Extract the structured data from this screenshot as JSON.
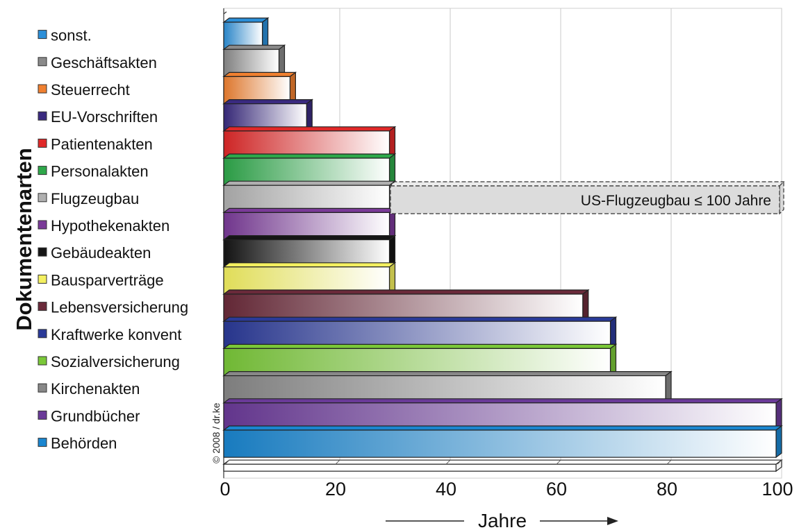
{
  "chart_data": {
    "type": "bar",
    "orientation": "horizontal",
    "ylabel": "Dokumentenarten",
    "xlabel": "Jahre",
    "xlim": [
      0,
      100
    ],
    "xticks": [
      "0",
      "20",
      "40",
      "60",
      "80",
      "100"
    ],
    "grid": true,
    "legend_placement": "left",
    "annotation": "US-Flugzeugbau ≤ 100 Jahre",
    "copyright": "© 2008 / dr.ke",
    "categories": [
      {
        "label": "sonst.",
        "value": 7,
        "color": "#2b8fd8"
      },
      {
        "label": "Geschäftsakten",
        "value": 10,
        "color": "#8a8a8a"
      },
      {
        "label": "Steuerrecht",
        "value": 12,
        "color": "#f08030"
      },
      {
        "label": "EU-Vorschriften",
        "value": 15,
        "color": "#3a2a80"
      },
      {
        "label": "Patientenakten",
        "value": 30,
        "color": "#e02828"
      },
      {
        "label": "Personalakten",
        "value": 30,
        "color": "#2ea84a"
      },
      {
        "label": "Flugzeugbau",
        "value": 30,
        "color": "#b0b0b0"
      },
      {
        "label": "Hypothekenakten",
        "value": 30,
        "color": "#7a3a98"
      },
      {
        "label": "Gebäudeakten",
        "value": 30,
        "color": "#151515"
      },
      {
        "label": "Bausparverträge",
        "value": 30,
        "color": "#f4f060"
      },
      {
        "label": "Lebensversicherung",
        "value": 65,
        "color": "#6a2a3a"
      },
      {
        "label": "Kraftwerke konvent",
        "value": 70,
        "color": "#2a3a98"
      },
      {
        "label": "Sozialversicherung",
        "value": 70,
        "color": "#7ac838"
      },
      {
        "label": "Kirchenakten",
        "value": 80,
        "color": "#888888"
      },
      {
        "label": "Grundbücher",
        "value": 100,
        "color": "#6a3a98"
      },
      {
        "label": "Behörden",
        "value": 100,
        "color": "#1a86d0"
      }
    ],
    "extended_range": {
      "label": "Flugzeugbau",
      "from": 30,
      "to": 100
    }
  }
}
